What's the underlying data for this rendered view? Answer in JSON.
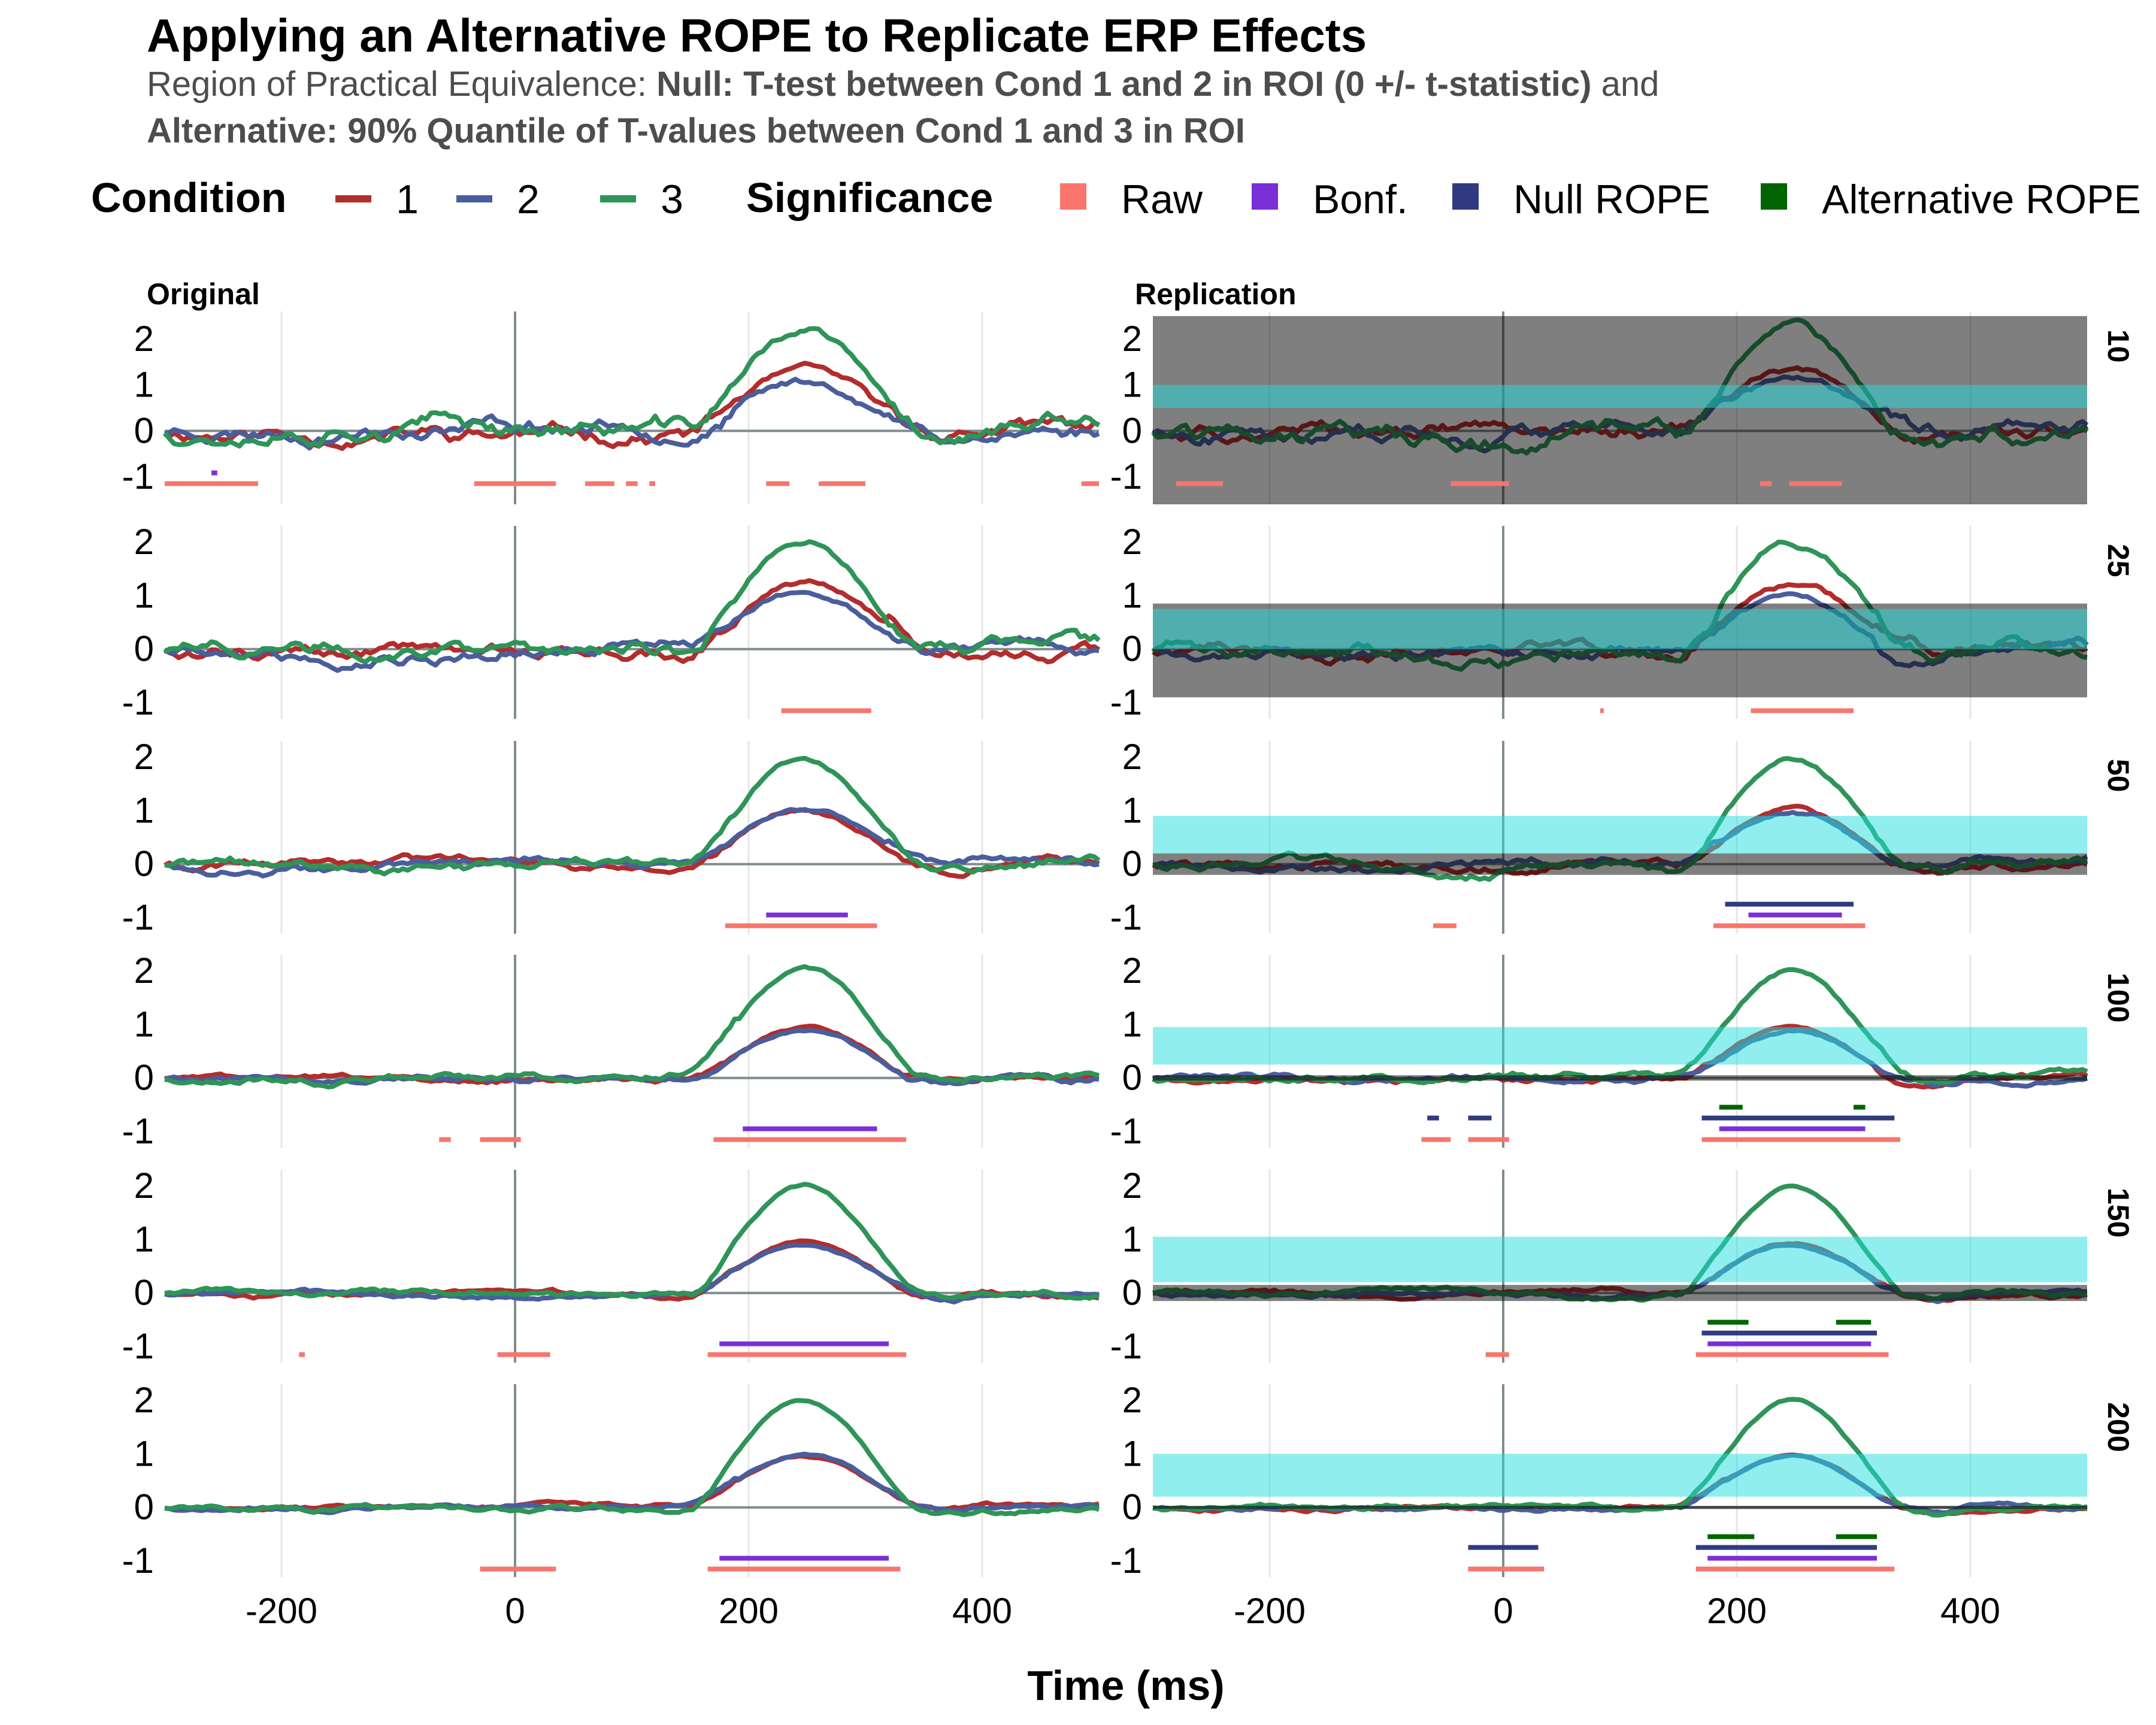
{
  "title": "Applying an Alternative ROPE to Replicate ERP Effects",
  "subtitle": {
    "line1_plain": "Region of Practical Equivalence: ",
    "line1_bold": "Null: T-test between Cond 1 and 2 in ROI (0 +/- t-statistic)",
    "line1_end": " and",
    "line2_bold": "Alternative: 90% Quantile of T-values between Cond 1 and 3 in ROI"
  },
  "legend": {
    "condition_title": "Condition",
    "condition_items": [
      {
        "label": "1",
        "color": "#b22d2d"
      },
      {
        "label": "2",
        "color": "#4a5e9c"
      },
      {
        "label": "3",
        "color": "#2e9457"
      }
    ],
    "significance_title": "Significance",
    "significance_items": [
      {
        "label": "Raw",
        "color": "#f8766d"
      },
      {
        "label": "Bonf.",
        "color": "#7b2fd6"
      },
      {
        "label": "Null ROPE",
        "color": "#2f3a80"
      },
      {
        "label": "Alternative ROPE",
        "color": "#006400"
      }
    ]
  },
  "chart_data": {
    "type": "line",
    "facet_columns": [
      "Original",
      "Replication"
    ],
    "facet_rows": [
      "10",
      "25",
      "50",
      "100",
      "150",
      "200"
    ],
    "xlabel": "Time (ms)",
    "ylabel": "",
    "xlim": [
      -300,
      500
    ],
    "xticks": [
      -200,
      0,
      200,
      400
    ],
    "yticks": [
      -1,
      0,
      1,
      2
    ],
    "x_tick_labels": [
      "-200",
      "0",
      "200",
      "400"
    ],
    "y_tick_labels": [
      "-1",
      "0",
      "1",
      "2"
    ],
    "series_colors": {
      "1": "#b22d2d",
      "2": "#4a5e9c",
      "3": "#2e9457"
    },
    "rows": [
      {
        "n": "10",
        "ylim": [
          -1.6,
          2.6
        ],
        "peak1": 1.3,
        "peak2": 1.1,
        "peak3": 2.2,
        "noise": 0.22,
        "null_rope": [
          -1.6,
          2.5
        ],
        "alt_rope": [
          0.5,
          1.0
        ],
        "original_sig": {
          "raw": [
            [
              -300,
              -220
            ],
            [
              -35,
              35
            ],
            [
              60,
              85
            ],
            [
              95,
              105
            ],
            [
              115,
              120
            ],
            [
              215,
              235
            ],
            [
              260,
              300
            ],
            [
              485,
              500
            ]
          ],
          "bonf": [
            [
              -260,
              -255
            ]
          ]
        },
        "replication_sig": {
          "raw": [
            [
              -280,
              -240
            ],
            [
              -45,
              5
            ],
            [
              220,
              230
            ],
            [
              245,
              290
            ]
          ],
          "bonf": [],
          "null_rope": [],
          "alt_rope": []
        }
      },
      {
        "n": "25",
        "ylim": [
          -1.3,
          2.3
        ],
        "peak1": 1.2,
        "peak2": 1.0,
        "peak3": 2.0,
        "noise": 0.15,
        "null_rope": [
          -0.9,
          0.85
        ],
        "alt_rope": [
          0.0,
          0.75
        ],
        "original_sig": {
          "raw": [
            [
              228,
              305
            ]
          ],
          "bonf": []
        },
        "replication_sig": {
          "raw": [
            [
              83,
              86
            ],
            [
              212,
              300
            ]
          ],
          "bonf": [],
          "null_rope": [],
          "alt_rope": []
        }
      },
      {
        "n": "50",
        "ylim": [
          -1.3,
          2.3
        ],
        "peak1": 1.0,
        "peak2": 1.0,
        "peak3": 2.0,
        "noise": 0.1,
        "null_rope": [
          -0.2,
          0.2
        ],
        "alt_rope": [
          0.2,
          0.9
        ],
        "original_sig": {
          "raw": [
            [
              180,
              310
            ]
          ],
          "bonf": [
            [
              215,
              285
            ]
          ]
        },
        "replication_sig": {
          "raw": [
            [
              -60,
              -40
            ],
            [
              180,
              310
            ]
          ],
          "bonf": [
            [
              210,
              290
            ]
          ],
          "null_rope": [
            [
              190,
              300
            ]
          ],
          "alt_rope": []
        }
      },
      {
        "n": "100",
        "ylim": [
          -1.3,
          2.3
        ],
        "peak1": 0.95,
        "peak2": 0.9,
        "peak3": 2.0,
        "noise": 0.07,
        "null_rope": [
          -0.05,
          0.05
        ],
        "alt_rope": [
          0.25,
          0.95
        ],
        "original_sig": {
          "raw": [
            [
              -65,
              -55
            ],
            [
              -30,
              5
            ],
            [
              170,
              335
            ]
          ],
          "bonf": [
            [
              195,
              310
            ]
          ]
        },
        "replication_sig": {
          "raw": [
            [
              -70,
              -45
            ],
            [
              -30,
              5
            ],
            [
              170,
              340
            ]
          ],
          "bonf": [
            [
              185,
              310
            ]
          ],
          "null_rope": [
            [
              -65,
              -55
            ],
            [
              -30,
              -10
            ],
            [
              170,
              335
            ]
          ],
          "alt_rope": [
            [
              185,
              205
            ],
            [
              300,
              310
            ]
          ]
        }
      },
      {
        "n": "150",
        "ylim": [
          -1.3,
          2.3
        ],
        "peak1": 0.95,
        "peak2": 0.9,
        "peak3": 2.0,
        "noise": 0.06,
        "null_rope": [
          -0.15,
          0.15
        ],
        "alt_rope": [
          0.2,
          1.05
        ],
        "original_sig": {
          "raw": [
            [
              -185,
              -180
            ],
            [
              -15,
              30
            ],
            [
              165,
              335
            ]
          ],
          "bonf": [
            [
              175,
              320
            ]
          ]
        },
        "replication_sig": {
          "raw": [
            [
              -15,
              5
            ],
            [
              165,
              330
            ]
          ],
          "bonf": [
            [
              175,
              315
            ]
          ],
          "null_rope": [
            [
              170,
              320
            ]
          ],
          "alt_rope": [
            [
              175,
              210
            ],
            [
              285,
              315
            ]
          ]
        }
      },
      {
        "n": "200",
        "ylim": [
          -1.3,
          2.3
        ],
        "peak1": 0.95,
        "peak2": 0.95,
        "peak3": 2.0,
        "noise": 0.05,
        "null_rope": [
          -0.03,
          0.03
        ],
        "alt_rope": [
          0.2,
          1.0
        ],
        "original_sig": {
          "raw": [
            [
              -30,
              35
            ],
            [
              165,
              330
            ]
          ],
          "bonf": [
            [
              175,
              320
            ]
          ]
        },
        "replication_sig": {
          "raw": [
            [
              -30,
              35
            ],
            [
              165,
              335
            ]
          ],
          "bonf": [
            [
              175,
              320
            ]
          ],
          "null_rope": [
            [
              -30,
              30
            ],
            [
              165,
              320
            ]
          ],
          "alt_rope": [
            [
              175,
              215
            ],
            [
              285,
              320
            ]
          ]
        }
      }
    ]
  }
}
